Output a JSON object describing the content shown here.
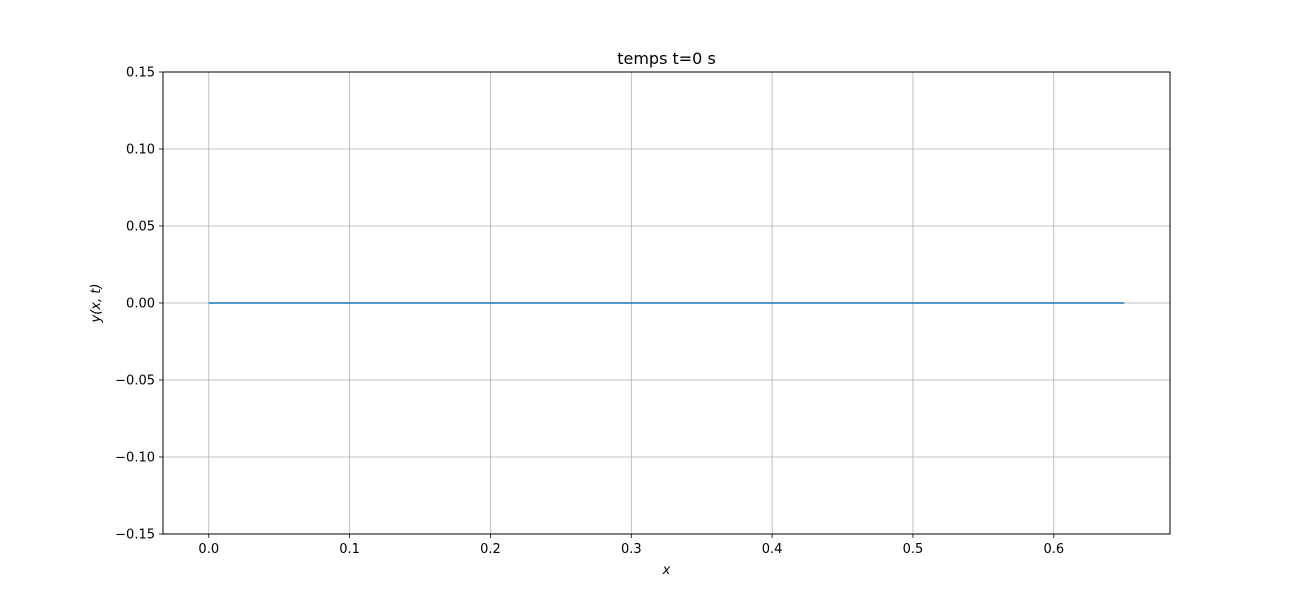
{
  "chart_data": {
    "type": "line",
    "title": "temps t=0 s",
    "xlabel": "x",
    "ylabel": "y(x, t)",
    "xlim": [
      -0.0325,
      0.6825
    ],
    "ylim": [
      -0.15,
      0.15
    ],
    "xticks": [
      0.0,
      0.1,
      0.2,
      0.3,
      0.4,
      0.5,
      0.6
    ],
    "xtick_labels": [
      "0.0",
      "0.1",
      "0.2",
      "0.3",
      "0.4",
      "0.5",
      "0.6"
    ],
    "yticks": [
      -0.15,
      -0.1,
      -0.05,
      0.0,
      0.05,
      0.1,
      0.15
    ],
    "ytick_labels": [
      "−0.15",
      "−0.10",
      "−0.05",
      "0.00",
      "0.05",
      "0.10",
      "0.15"
    ],
    "grid": true,
    "series": [
      {
        "color": "#1f77b4",
        "x": [
          0.0,
          0.65
        ],
        "y": [
          0.0,
          0.0
        ]
      }
    ]
  }
}
